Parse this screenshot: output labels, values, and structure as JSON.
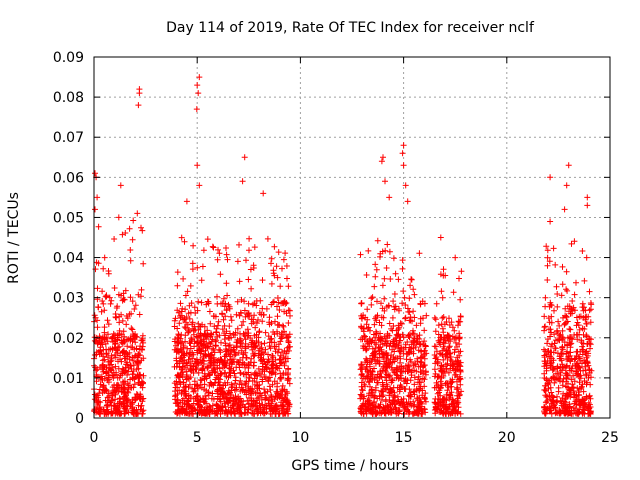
{
  "chart_data": {
    "type": "scatter",
    "title": "Day 114 of 2019, Rate Of TEC Index for receiver nclf",
    "xlabel": "GPS time / hours",
    "ylabel": "ROTI / TECUs",
    "xlim": [
      0,
      25
    ],
    "ylim": [
      0,
      0.09
    ],
    "x_ticks": [
      0,
      5,
      10,
      15,
      20,
      25
    ],
    "y_ticks": [
      0,
      0.01,
      0.02,
      0.03,
      0.04,
      0.05,
      0.06,
      0.07,
      0.08,
      0.09
    ],
    "grid": true,
    "marker": "+",
    "marker_color": "#ff0000",
    "point_count_note": "dense scatter; representative points",
    "clusters": [
      {
        "x_range": [
          0.0,
          2.4
        ],
        "y_typical_max": 0.05,
        "peaks": [
          [
            0.05,
            0.061
          ],
          [
            0.1,
            0.06
          ],
          [
            0.15,
            0.055
          ],
          [
            0.05,
            0.052
          ],
          [
            1.3,
            0.058
          ],
          [
            2.2,
            0.081
          ],
          [
            2.2,
            0.082
          ],
          [
            2.15,
            0.078
          ],
          [
            1.2,
            0.05
          ],
          [
            2.1,
            0.051
          ]
        ]
      },
      {
        "x_range": [
          3.9,
          9.5
        ],
        "y_typical_max": 0.045,
        "peaks": [
          [
            5.1,
            0.085
          ],
          [
            5.0,
            0.083
          ],
          [
            5.05,
            0.081
          ],
          [
            4.98,
            0.077
          ],
          [
            5.0,
            0.063
          ],
          [
            7.3,
            0.065
          ],
          [
            7.2,
            0.059
          ],
          [
            5.1,
            0.058
          ],
          [
            8.2,
            0.056
          ],
          [
            4.5,
            0.054
          ]
        ]
      },
      {
        "x_range": [
          12.9,
          16.1
        ],
        "y_typical_max": 0.045,
        "peaks": [
          [
            14.0,
            0.065
          ],
          [
            13.95,
            0.064
          ],
          [
            15.0,
            0.068
          ],
          [
            14.95,
            0.066
          ],
          [
            15.0,
            0.063
          ],
          [
            14.1,
            0.059
          ],
          [
            15.1,
            0.058
          ],
          [
            14.3,
            0.055
          ],
          [
            15.2,
            0.054
          ]
        ]
      },
      {
        "x_range": [
          16.5,
          17.8
        ],
        "y_typical_max": 0.04,
        "peaks": [
          [
            16.8,
            0.045
          ],
          [
            17.5,
            0.04
          ]
        ]
      },
      {
        "x_range": [
          21.8,
          24.1
        ],
        "y_typical_max": 0.045,
        "peaks": [
          [
            22.1,
            0.06
          ],
          [
            23.0,
            0.063
          ],
          [
            22.9,
            0.058
          ],
          [
            23.9,
            0.055
          ],
          [
            23.9,
            0.053
          ],
          [
            22.8,
            0.052
          ],
          [
            22.1,
            0.049
          ]
        ]
      }
    ]
  }
}
